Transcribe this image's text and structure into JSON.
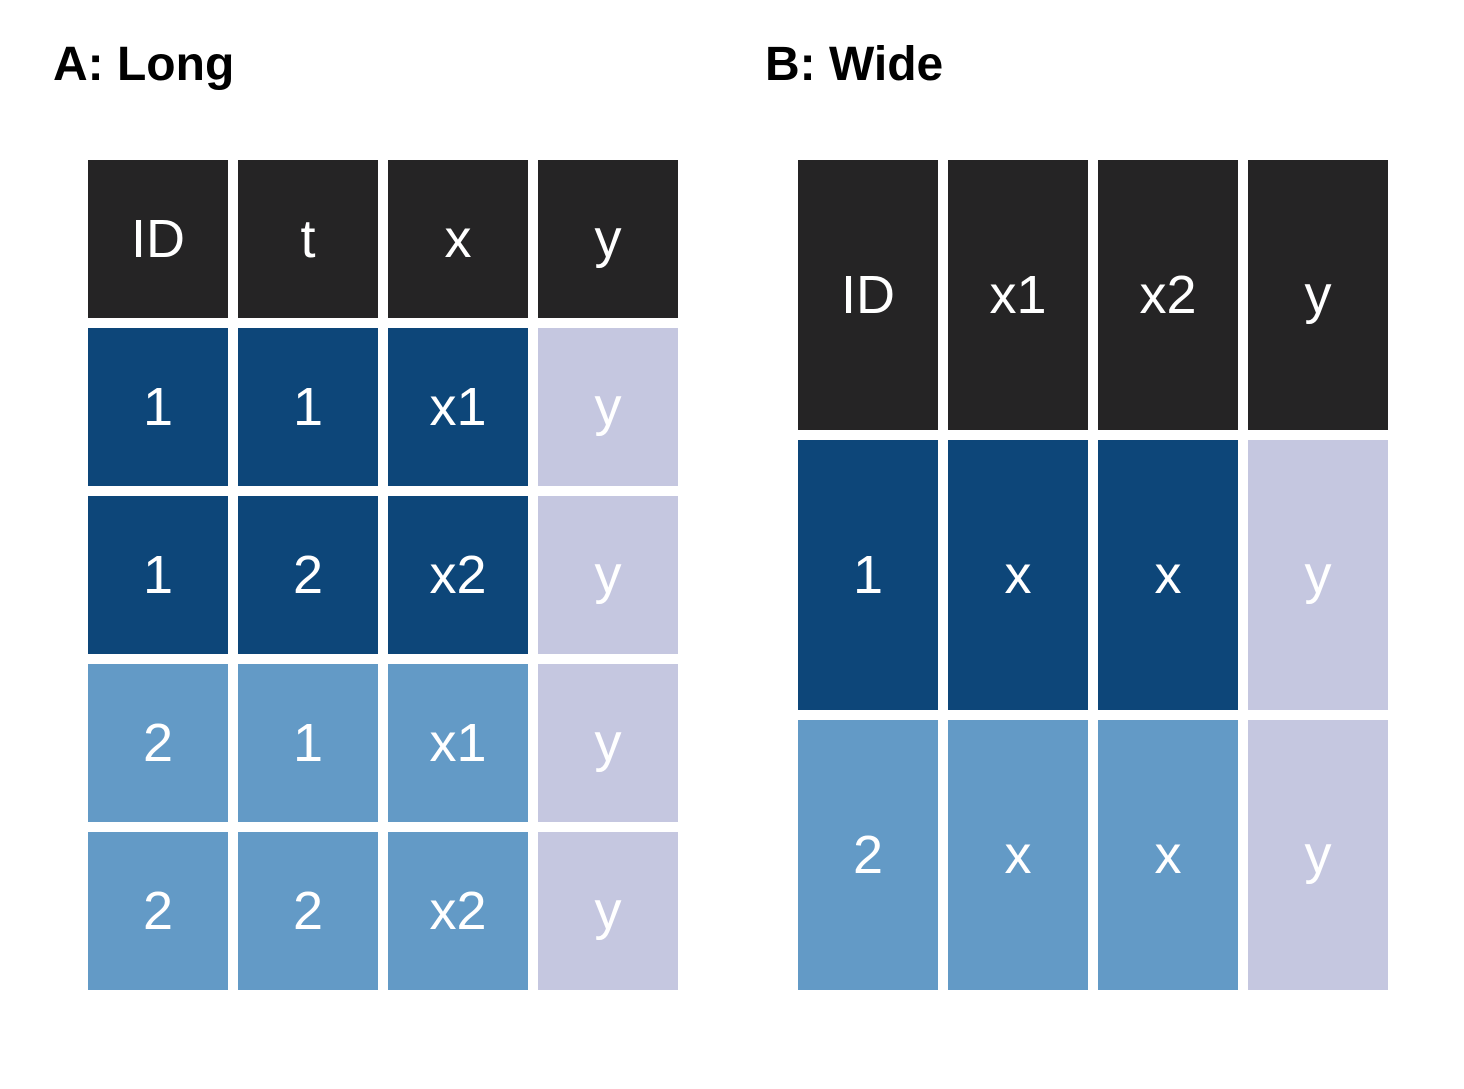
{
  "colors": {
    "header": "#252425",
    "id_one": "#0d4679",
    "id_two": "#639ac6",
    "outcome": "#c5c7e0"
  },
  "panels": [
    {
      "id": "long",
      "title": "A: Long",
      "columns": [
        "ID",
        "t",
        "x",
        "y"
      ],
      "rows": [
        {
          "group": "id_one",
          "cells": [
            "1",
            "1",
            "x1",
            "y"
          ]
        },
        {
          "group": "id_one",
          "cells": [
            "1",
            "2",
            "x2",
            "y"
          ]
        },
        {
          "group": "id_two",
          "cells": [
            "2",
            "1",
            "x1",
            "y"
          ]
        },
        {
          "group": "id_two",
          "cells": [
            "2",
            "2",
            "x2",
            "y"
          ]
        }
      ]
    },
    {
      "id": "wide",
      "title": "B: Wide",
      "columns": [
        "ID",
        "x1",
        "x2",
        "y"
      ],
      "rows": [
        {
          "group": "id_one",
          "cells": [
            "1",
            "x",
            "x",
            "y"
          ]
        },
        {
          "group": "id_two",
          "cells": [
            "2",
            "x",
            "x",
            "y"
          ]
        }
      ]
    }
  ]
}
